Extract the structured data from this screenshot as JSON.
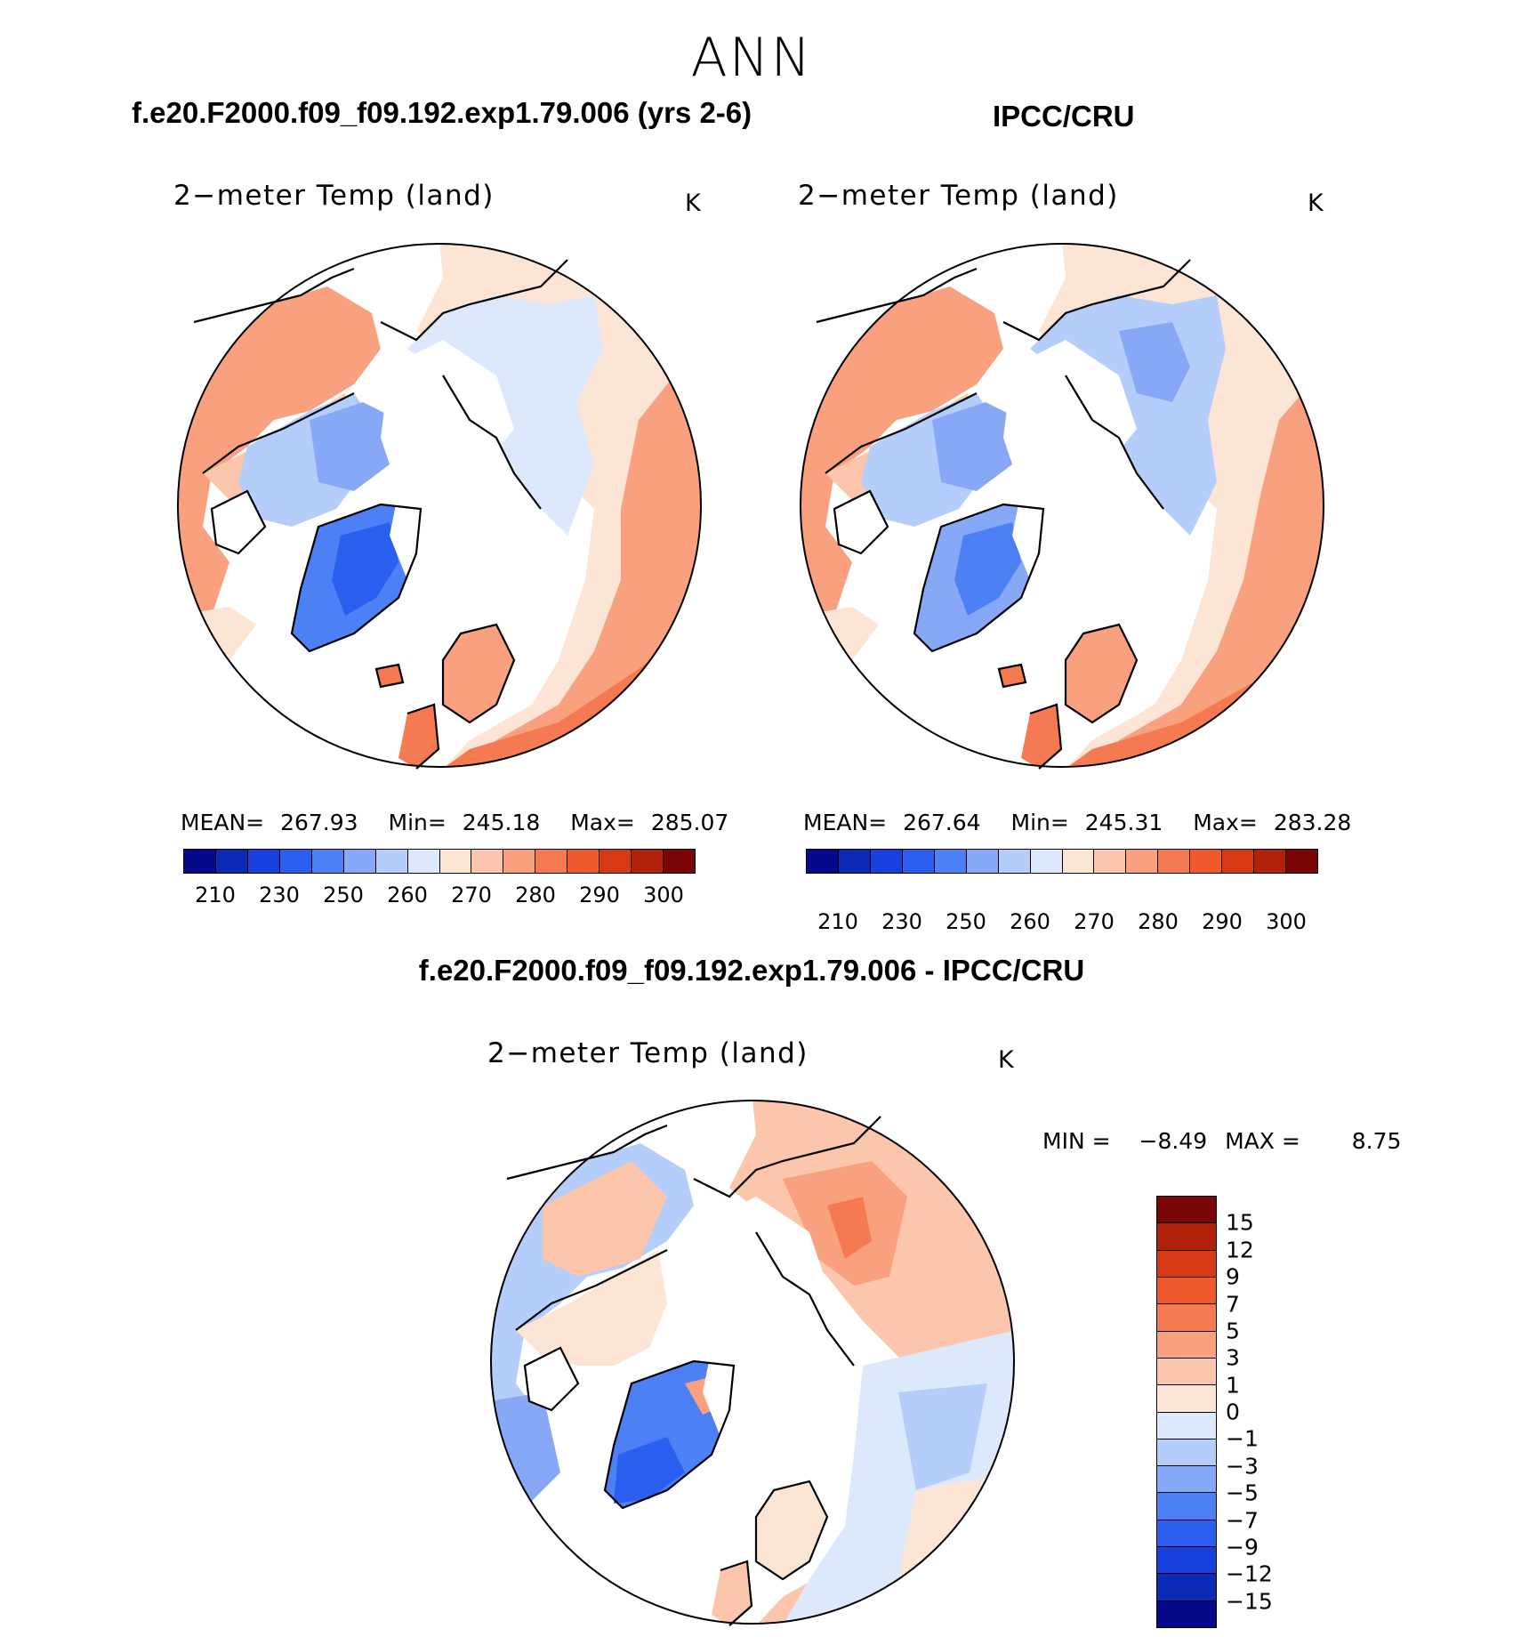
{
  "season": "ANN",
  "left_case": {
    "title": "f.e20.F2000.f09_f09.192.exp1.79.006 (yrs 2-6)"
  },
  "right_case": {
    "title": "IPCC/CRU"
  },
  "diff_case": {
    "title": "f.e20.F2000.f09_f09.192.exp1.79.006 - IPCC/CRU"
  },
  "panels": {
    "model": {
      "variable": "2−meter Temp (land)",
      "unit": "K",
      "stats": {
        "mean_label": "MEAN=",
        "mean": "267.93",
        "min_label": "Min=",
        "min": "245.18",
        "max_label": "Max=",
        "max": "285.07"
      }
    },
    "obs": {
      "variable": "2−meter Temp (land)",
      "unit": "K",
      "stats": {
        "mean_label": "MEAN=",
        "mean": "267.64",
        "min_label": "Min=",
        "min": "245.31",
        "max_label": "Max=",
        "max": "283.28"
      }
    },
    "diff": {
      "variable": "2−meter Temp (land)",
      "unit": "K",
      "stats": {
        "min_label": "MIN =",
        "min": "−8.49",
        "max_label": "MAX =",
        "max": "8.75"
      }
    }
  },
  "abs_colorbar": {
    "ticks": [
      "210",
      "230",
      "250",
      "260",
      "270",
      "280",
      "290",
      "300"
    ],
    "colors": [
      "#08088a",
      "#0c2ab8",
      "#1740dd",
      "#2b5ff0",
      "#4d7ff5",
      "#86a8f7",
      "#b4cdfa",
      "#dce9fc",
      "#fde5d6",
      "#fbc6ab",
      "#f9a07e",
      "#f67a51",
      "#ef5a2c",
      "#d63913",
      "#b0200a",
      "#7a0505"
    ]
  },
  "diff_colorbar": {
    "ticks": [
      "15",
      "12",
      "9",
      "7",
      "5",
      "3",
      "1",
      "0",
      "−1",
      "−3",
      "−5",
      "−7",
      "−9",
      "−12",
      "−15"
    ],
    "colors": [
      "#7a0505",
      "#b0200a",
      "#d63913",
      "#ef5a2c",
      "#f67a51",
      "#f9a07e",
      "#fbc6ab",
      "#fde5d6",
      "#dce9fc",
      "#b4cdfa",
      "#86a8f7",
      "#4d7ff5",
      "#2b5ff0",
      "#1740dd",
      "#0c2ab8",
      "#08088a"
    ]
  }
}
